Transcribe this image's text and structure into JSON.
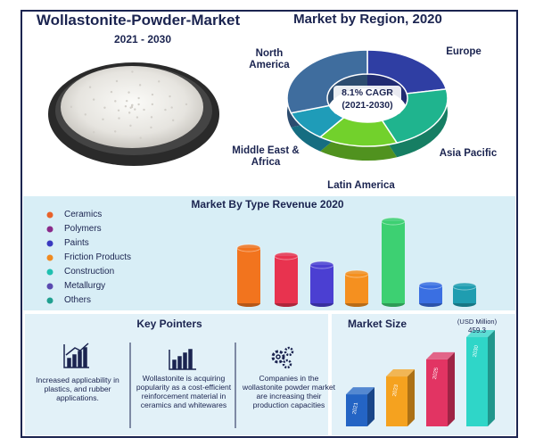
{
  "header": {
    "title": "Wollastonite-Powder-Market",
    "subtitle": "2021 - 2030"
  },
  "chart_data": [
    {
      "type": "donut",
      "title": "Market by Region, 2020",
      "annotation": [
        "8.1% CAGR",
        "(2021-2030)"
      ],
      "categories": [
        "Europe",
        "Asia Pacific",
        "Latin America",
        "Middle East & Africa",
        "North America"
      ],
      "values": [
        22,
        22,
        16,
        10,
        30
      ],
      "colors": [
        "#2f3ea3",
        "#1fb48e",
        "#72d12c",
        "#1f9cb8",
        "#3f6d9e"
      ]
    },
    {
      "type": "cylinder",
      "title": "Market By Type Revenue 2020",
      "categories": [
        "Ceramics",
        "Polymers",
        "Paints",
        "Friction Products",
        "Construction",
        "Metallurgy",
        "Others"
      ],
      "values": [
        62,
        53,
        43,
        33,
        92,
        20,
        19
      ],
      "colors": [
        "#f2741e",
        "#e8334f",
        "#4b3fd2",
        "#f5901f",
        "#3dd072",
        "#3a6fe2",
        "#1f9db0"
      ],
      "legend_colors": [
        "#e8622a",
        "#8a2a8a",
        "#3a3ac0",
        "#f08a20",
        "#20c0b0",
        "#5a4ab0",
        "#20a090"
      ]
    },
    {
      "type": "bar3d",
      "title": "Market Size",
      "unit": "(USD Million)",
      "categories": [
        "2021",
        "2023",
        "2025",
        "2030"
      ],
      "values": [
        165,
        257,
        345,
        459.3
      ],
      "value_labels": [
        null,
        null,
        null,
        "459.3"
      ],
      "colors": [
        "#2464c4",
        "#f5a21f",
        "#e23463",
        "#2fd6c8"
      ]
    }
  ],
  "key_pointers": {
    "title": "Key Pointers",
    "items": [
      "Increased applicability in plastics, and rubber applications.",
      "Wollastonite is acquiring popularity as a cost-efficient reinforcement material in ceramics and whitewares",
      "Companies in the wollastonite powder market are increasing their production capacities"
    ]
  }
}
